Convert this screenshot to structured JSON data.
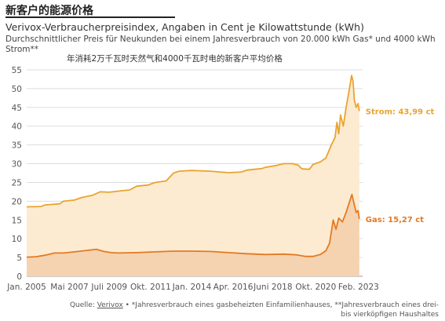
{
  "header": {
    "title": "新客户的能源价格"
  },
  "chart_data": {
    "type": "area",
    "title": "Verivox-Verbraucherpreisindex, Angaben in Cent je Kilowattstunde (kWh)",
    "subtitle": "Durchschnittlicher Preis für Neukunden bei einem Jahresverbrauch von 20.000 kWh Gas* und 4000 kWh Strom**",
    "subtitle_cn": "年消耗2万千瓦时天然气和4000千瓦时电的新客户平均价格",
    "ylim": [
      0,
      55
    ],
    "yticks": [
      0,
      5,
      10,
      15,
      20,
      25,
      30,
      35,
      40,
      45,
      50,
      55
    ],
    "xlim": [
      2005.0,
      2023.3
    ],
    "xticks": [
      {
        "label": "Jan. 2005",
        "x": 2005.0
      },
      {
        "label": "Mai 2007",
        "x": 2007.33
      },
      {
        "label": "Juli 2009",
        "x": 2009.5
      },
      {
        "label": "Okt. 2011",
        "x": 2011.75
      },
      {
        "label": "Jan. 2014",
        "x": 2014.0
      },
      {
        "label": "Apr. 2016",
        "x": 2016.25
      },
      {
        "label": "Juni 2018",
        "x": 2018.42
      },
      {
        "label": "Okt. 2020",
        "x": 2020.75
      },
      {
        "label": "Feb. 2023",
        "x": 2023.08
      }
    ],
    "grid": true,
    "series": [
      {
        "name": "Strom",
        "end_label": "Strom: 43,99 ct",
        "color": "#E8A42F",
        "fill": "#FCEBD1",
        "points": [
          [
            2005.0,
            18.5
          ],
          [
            2005.8,
            18.6
          ],
          [
            2006.0,
            19.0
          ],
          [
            2006.8,
            19.3
          ],
          [
            2007.0,
            20.0
          ],
          [
            2007.6,
            20.3
          ],
          [
            2008.0,
            21.0
          ],
          [
            2008.6,
            21.6
          ],
          [
            2009.0,
            22.5
          ],
          [
            2009.5,
            22.4
          ],
          [
            2010.0,
            22.7
          ],
          [
            2010.6,
            23.0
          ],
          [
            2011.0,
            24.0
          ],
          [
            2011.6,
            24.3
          ],
          [
            2012.0,
            25.0
          ],
          [
            2012.6,
            25.4
          ],
          [
            2013.0,
            27.5
          ],
          [
            2013.3,
            28.0
          ],
          [
            2014.0,
            28.2
          ],
          [
            2015.0,
            28.0
          ],
          [
            2016.0,
            27.6
          ],
          [
            2016.7,
            27.8
          ],
          [
            2017.0,
            28.3
          ],
          [
            2017.8,
            28.7
          ],
          [
            2018.0,
            29.0
          ],
          [
            2018.6,
            29.5
          ],
          [
            2019.0,
            30.0
          ],
          [
            2019.5,
            30.0
          ],
          [
            2019.8,
            29.6
          ],
          [
            2020.0,
            28.6
          ],
          [
            2020.4,
            28.5
          ],
          [
            2020.6,
            29.8
          ],
          [
            2021.0,
            30.5
          ],
          [
            2021.3,
            31.5
          ],
          [
            2021.6,
            35.0
          ],
          [
            2021.8,
            37.0
          ],
          [
            2021.9,
            41.0
          ],
          [
            2022.0,
            38.0
          ],
          [
            2022.1,
            43.0
          ],
          [
            2022.25,
            40.0
          ],
          [
            2022.4,
            45.0
          ],
          [
            2022.55,
            49.0
          ],
          [
            2022.7,
            53.5
          ],
          [
            2022.78,
            52.0
          ],
          [
            2022.85,
            47.0
          ],
          [
            2022.95,
            45.0
          ],
          [
            2023.05,
            46.0
          ],
          [
            2023.12,
            43.99
          ]
        ]
      },
      {
        "name": "Gas",
        "end_label": "Gas: 15,27 ct",
        "color": "#E37A22",
        "fill": "#F6D3B0",
        "points": [
          [
            2005.0,
            5.1
          ],
          [
            2005.5,
            5.2
          ],
          [
            2006.0,
            5.6
          ],
          [
            2006.5,
            6.2
          ],
          [
            2007.0,
            6.2
          ],
          [
            2007.8,
            6.6
          ],
          [
            2008.3,
            6.9
          ],
          [
            2008.8,
            7.2
          ],
          [
            2009.2,
            6.6
          ],
          [
            2009.6,
            6.3
          ],
          [
            2010.0,
            6.2
          ],
          [
            2011.0,
            6.3
          ],
          [
            2012.0,
            6.5
          ],
          [
            2013.0,
            6.7
          ],
          [
            2014.0,
            6.7
          ],
          [
            2015.0,
            6.6
          ],
          [
            2016.0,
            6.3
          ],
          [
            2017.0,
            6.0
          ],
          [
            2018.0,
            5.8
          ],
          [
            2019.0,
            5.9
          ],
          [
            2019.7,
            5.7
          ],
          [
            2020.2,
            5.3
          ],
          [
            2020.6,
            5.3
          ],
          [
            2021.0,
            5.8
          ],
          [
            2021.3,
            6.8
          ],
          [
            2021.5,
            8.8
          ],
          [
            2021.7,
            15.0
          ],
          [
            2021.85,
            12.5
          ],
          [
            2022.0,
            15.5
          ],
          [
            2022.2,
            14.5
          ],
          [
            2022.4,
            17.0
          ],
          [
            2022.6,
            20.0
          ],
          [
            2022.72,
            21.8
          ],
          [
            2022.85,
            19.0
          ],
          [
            2022.95,
            17.0
          ],
          [
            2023.05,
            17.5
          ],
          [
            2023.12,
            15.27
          ]
        ]
      }
    ]
  },
  "footer": {
    "source_prefix": "Quelle: ",
    "source_link": "Verivox",
    "source_rest": " • *Jahresverbrauch eines gasbeheizten Einfamilienhauses, **Jahresverbrauch eines drei- bis vierköpfigen Haushaltes"
  }
}
